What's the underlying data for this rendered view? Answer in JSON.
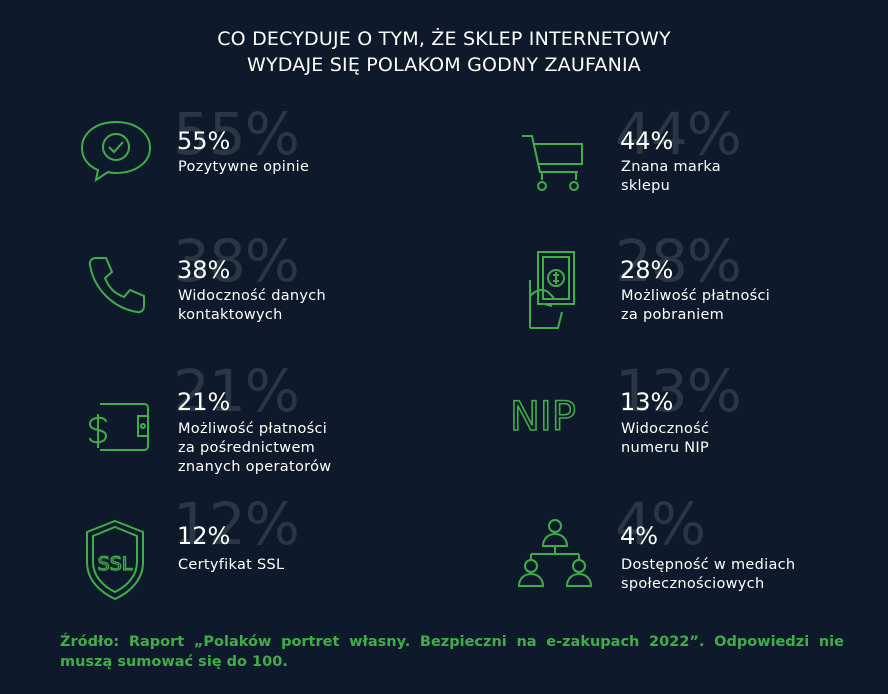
{
  "title": {
    "line1": "CO DECYDUJE O TYM, ŻE SKLEP INTERNETOWY",
    "line2": "WYDAJE SIĘ POLAKOM GODNY ZAUFANIA"
  },
  "accent_color": "#3fae49",
  "items": [
    {
      "percent": "55%",
      "label_lines": [
        "Pozytywne opinie"
      ],
      "icon": "chat-check-icon"
    },
    {
      "percent": "44%",
      "label_lines": [
        "Znana marka",
        "sklepu"
      ],
      "icon": "shopping-cart-icon"
    },
    {
      "percent": "38%",
      "label_lines": [
        "Widoczność danych",
        "kontaktowych"
      ],
      "icon": "phone-icon"
    },
    {
      "percent": "28%",
      "label_lines": [
        "Możliwość płatności",
        "za pobraniem"
      ],
      "icon": "hand-cash-icon"
    },
    {
      "percent": "21%",
      "label_lines": [
        "Możliwość płatności",
        "za pośrednictwem",
        "znanych operatorów"
      ],
      "icon": "wallet-dollar-icon"
    },
    {
      "percent": "13%",
      "label_lines": [
        "Widoczność",
        "numeru NIP"
      ],
      "icon": "nip-icon",
      "icon_text": "NIP"
    },
    {
      "percent": "12%",
      "label_lines": [
        "Certyfikat SSL"
      ],
      "icon": "ssl-shield-icon",
      "icon_text": "SSL"
    },
    {
      "percent": "4%",
      "label_lines": [
        "Dostępność w mediach",
        "społecznościowych"
      ],
      "icon": "network-people-icon"
    }
  ],
  "source": "Źródło: Raport „Polaków portret własny. Bezpieczni na e-zakupach 2022”. Odpowiedzi nie muszą sumować się do 100."
}
